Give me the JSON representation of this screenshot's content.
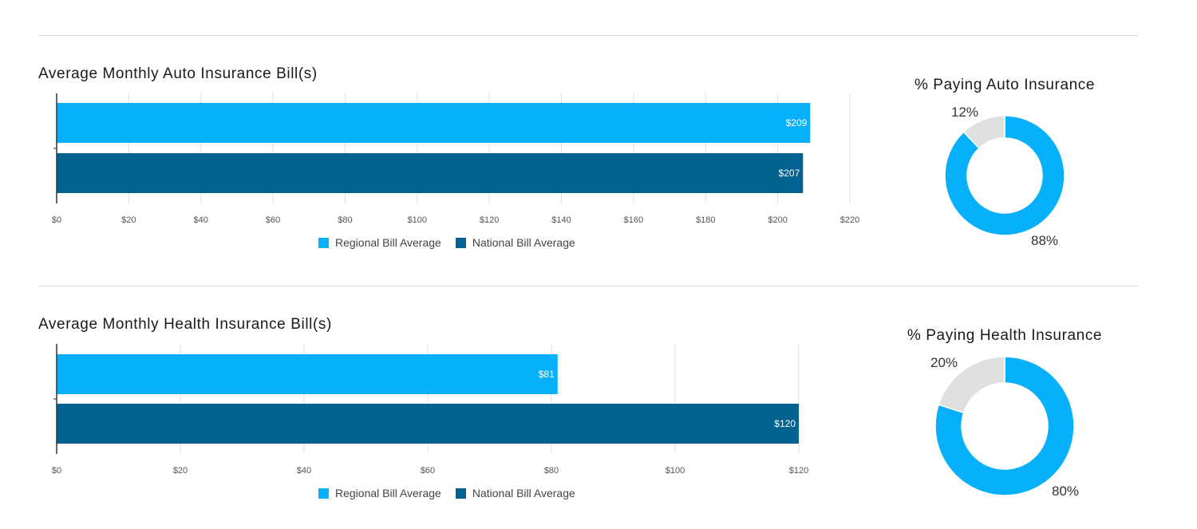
{
  "colors": {
    "regional": "#06b0fb",
    "national": "#03628f",
    "remaining": "#e0e0e0"
  },
  "chart_data": [
    {
      "type": "bar",
      "orientation": "horizontal",
      "title": "Average Monthly Auto Insurance Bill(s)",
      "series": [
        {
          "name": "Regional Bill Average",
          "value": 209,
          "label": "$209"
        },
        {
          "name": "National Bill Average",
          "value": 207,
          "label": "$207"
        }
      ],
      "xlim": [
        0,
        220
      ],
      "ticks": [
        "$0",
        "$20",
        "$40",
        "$60",
        "$80",
        "$100",
        "$120",
        "$140",
        "$160",
        "$180",
        "$200",
        "$220"
      ],
      "tick_values": [
        0,
        20,
        40,
        60,
        80,
        100,
        120,
        140,
        160,
        180,
        200,
        220
      ],
      "grid": true,
      "legend": "bottom"
    },
    {
      "type": "pie",
      "title": "% Paying Auto Insurance",
      "slices": [
        {
          "value": 88,
          "label": "88%"
        },
        {
          "value": 12,
          "label": "12%"
        }
      ]
    },
    {
      "type": "bar",
      "orientation": "horizontal",
      "title": "Average Monthly Health Insurance Bill(s)",
      "series": [
        {
          "name": "Regional Bill Average",
          "value": 81,
          "label": "$81"
        },
        {
          "name": "National Bill Average",
          "value": 120,
          "label": "$120"
        }
      ],
      "xlim": [
        0,
        120
      ],
      "ticks": [
        "$0",
        "$20",
        "$40",
        "$60",
        "$80",
        "$100",
        "$120"
      ],
      "tick_values": [
        0,
        20,
        40,
        60,
        80,
        100,
        120
      ],
      "grid": true,
      "legend": "bottom"
    },
    {
      "type": "pie",
      "title": "% Paying Health Insurance",
      "slices": [
        {
          "value": 80,
          "label": "80%"
        },
        {
          "value": 20,
          "label": "20%"
        }
      ]
    }
  ]
}
